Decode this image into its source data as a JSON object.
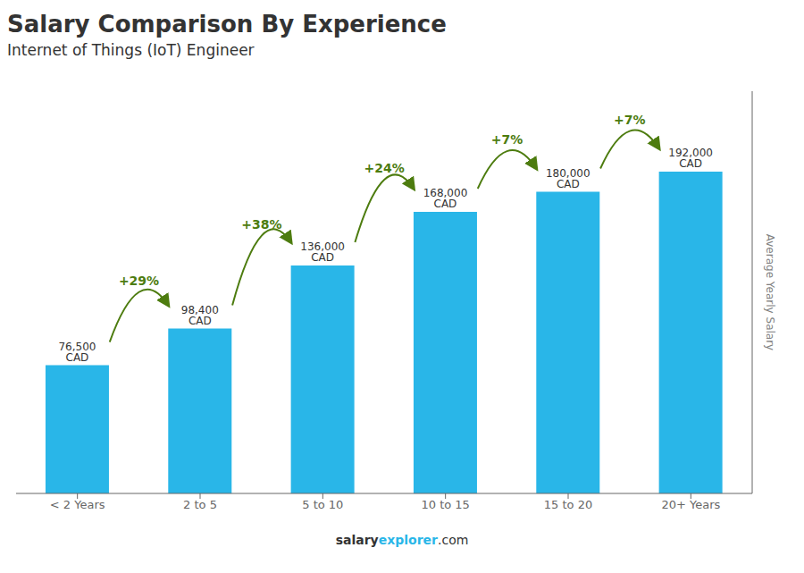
{
  "chart_data": {
    "type": "bar",
    "title": "Salary Comparison By Experience",
    "subtitle": "Internet of Things (IoT) Engineer",
    "categories": [
      "< 2 Years",
      "2 to 5",
      "5 to 10",
      "10 to 15",
      "15 to 20",
      "20+ Years"
    ],
    "values": [
      76500,
      98400,
      136000,
      168000,
      180000,
      192000
    ],
    "value_labels": [
      "76,500 CAD",
      "98,400 CAD",
      "136,000 CAD",
      "168,000 CAD",
      "180,000 CAD",
      "192,000 CAD"
    ],
    "data_labels": true,
    "annotations": [
      "+29%",
      "+38%",
      "+24%",
      "+7%",
      "+7%"
    ],
    "ylabel": "Average Yearly Salary",
    "ylim": [
      0,
      240000
    ],
    "tick_labels": "x",
    "grid": false,
    "color": "#29b6e8",
    "footer": [
      "salary",
      "explorer",
      ".com"
    ]
  }
}
